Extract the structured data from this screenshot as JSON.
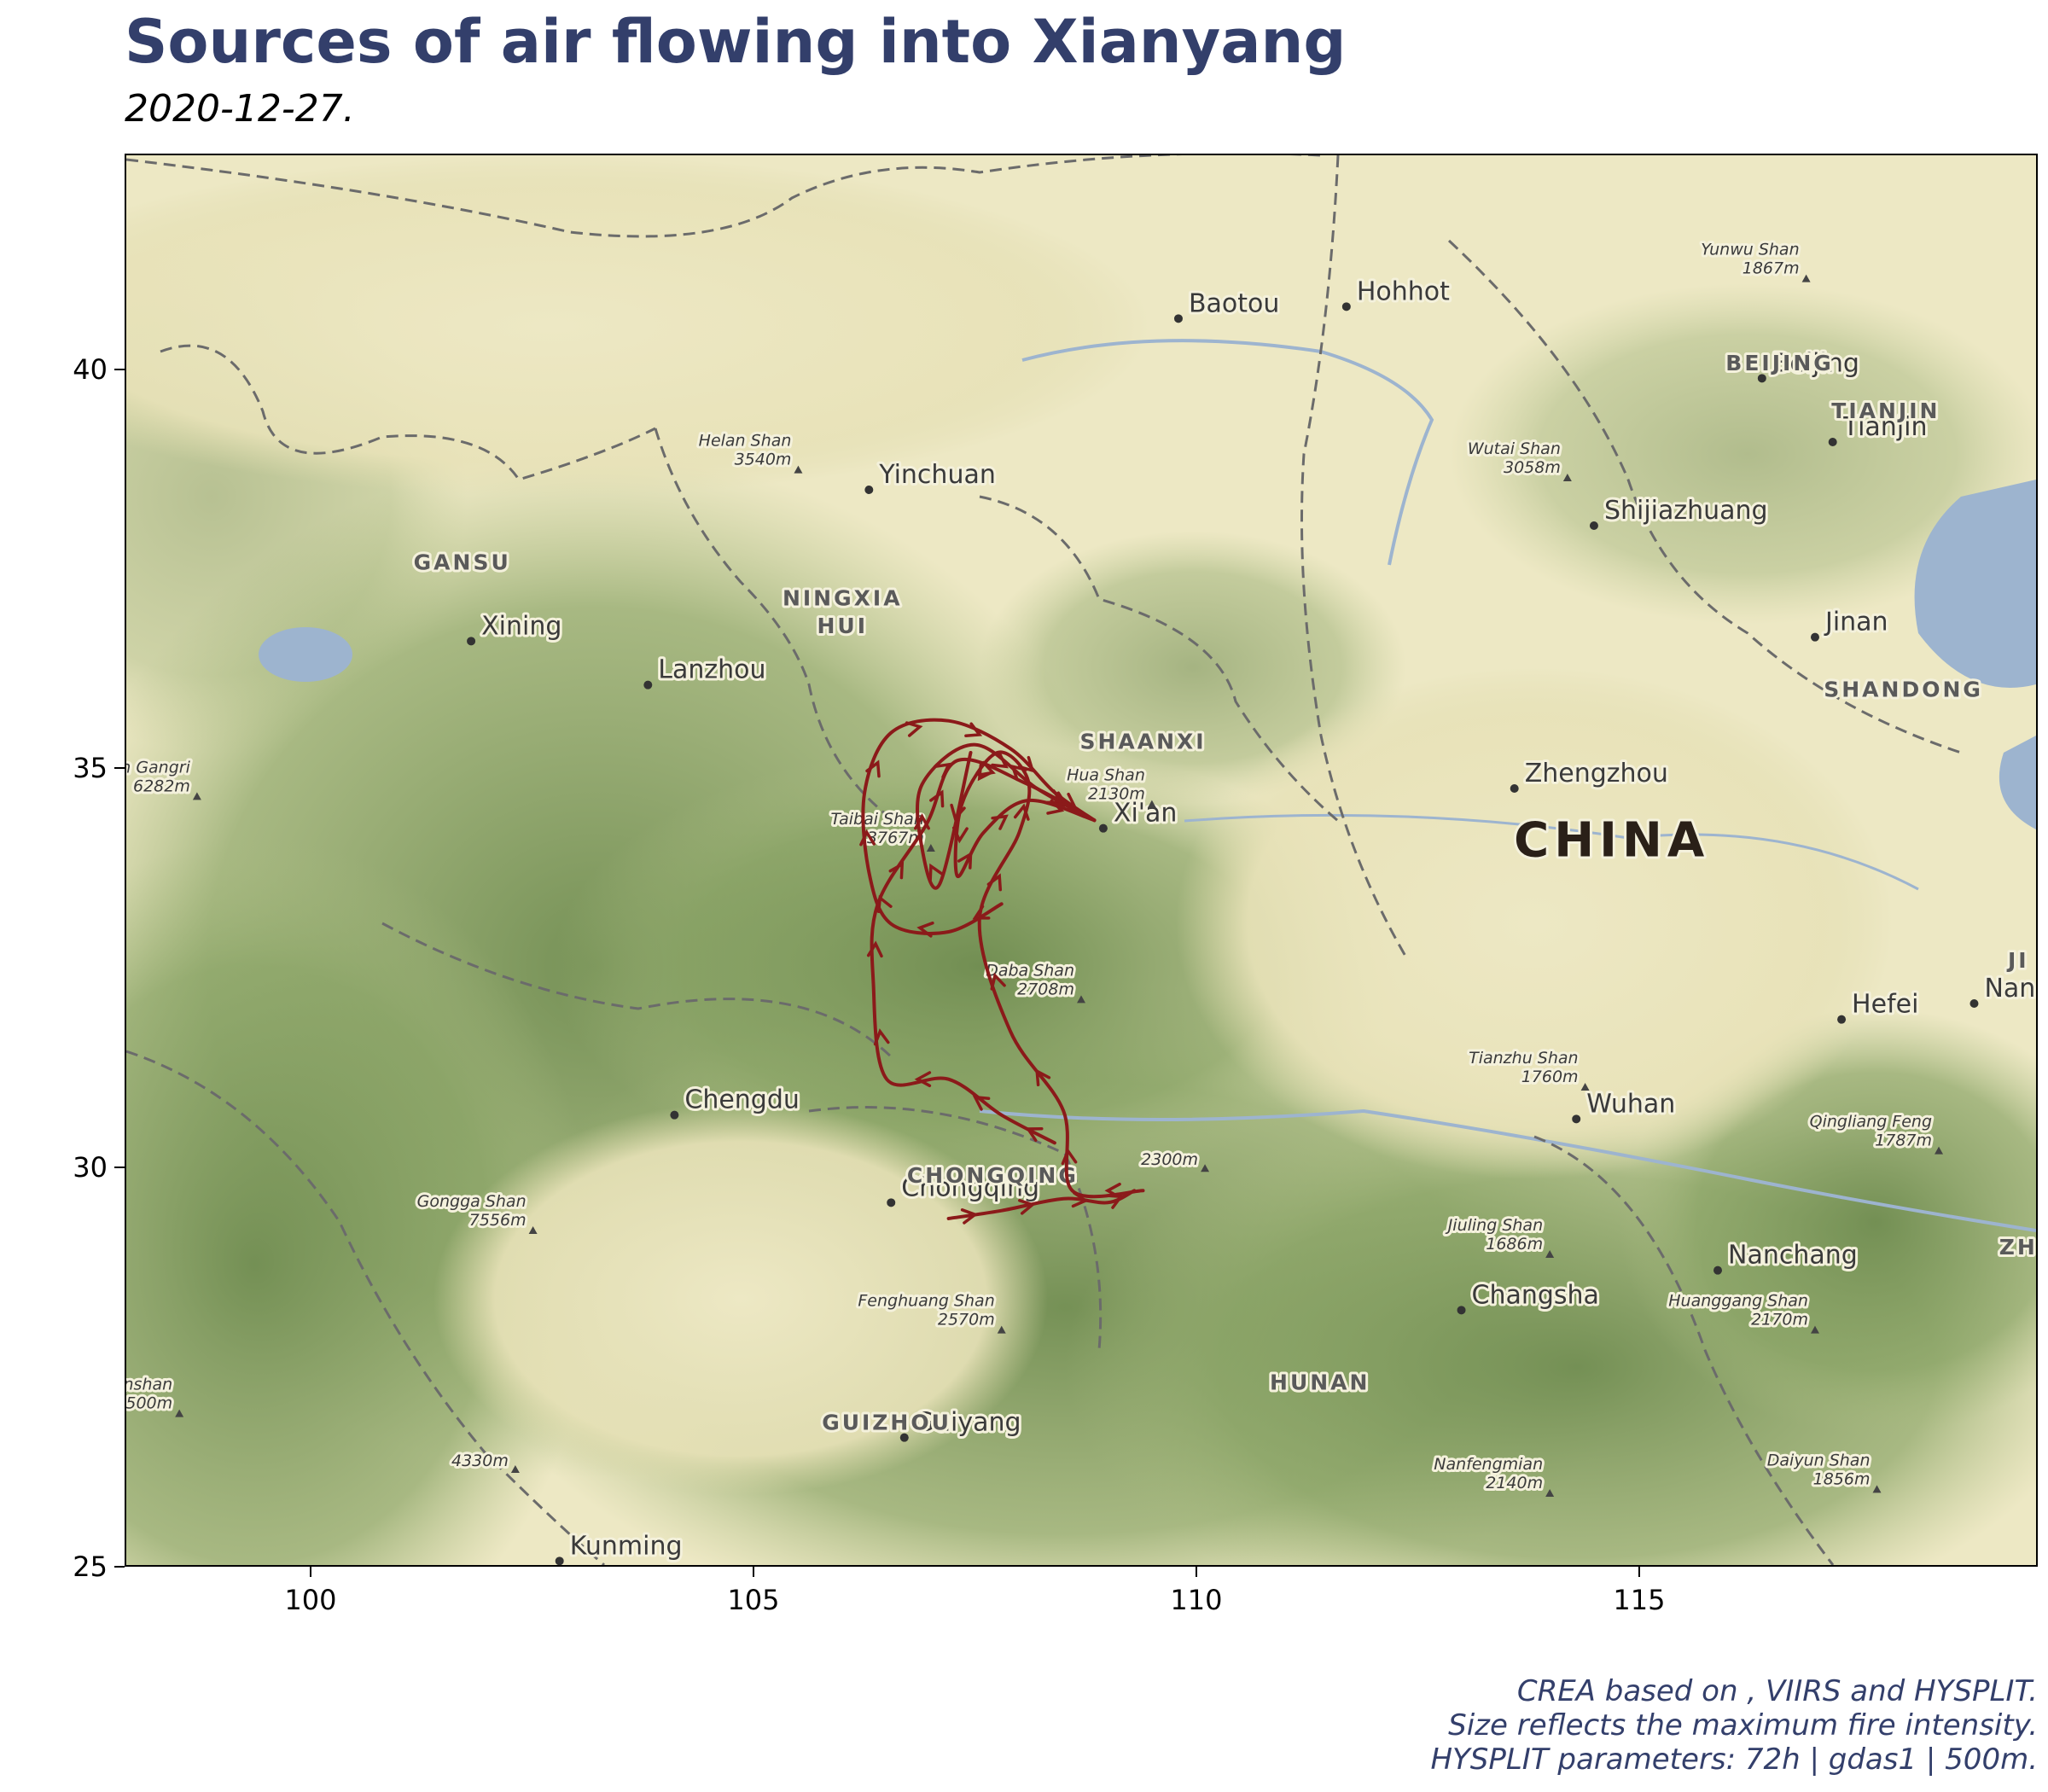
{
  "title": "Sources of air flowing into Xianyang",
  "subtitle": "2020-12-27.",
  "caption": [
    "CREA based on , VIIRS and HYSPLIT.",
    "Size reflects the maximum fire intensity.",
    "HYSPLIT parameters: 72h | gdas1 | 500m."
  ],
  "map": {
    "xlim": [
      97.9,
      119.5
    ],
    "ylim": [
      25.0,
      42.7
    ],
    "x_ticks": [
      100,
      105,
      110,
      115
    ],
    "y_ticks": [
      25,
      30,
      35,
      40
    ],
    "trajectory_color": "#8b1a1a",
    "water_color": "#9db4cf",
    "plain_color": "#ede8c4",
    "forest_color": "#7e9a5c",
    "cities": [
      {
        "name": "Baotou",
        "lon": 109.8,
        "lat": 40.65
      },
      {
        "name": "Hohhot",
        "lon": 111.7,
        "lat": 40.8
      },
      {
        "name": "Beijing",
        "lon": 116.4,
        "lat": 39.9
      },
      {
        "name": "Tianjin",
        "lon": 117.2,
        "lat": 39.1
      },
      {
        "name": "Yinchuan",
        "lon": 106.3,
        "lat": 38.5
      },
      {
        "name": "Shijiazhuang",
        "lon": 114.5,
        "lat": 38.05
      },
      {
        "name": "Xining",
        "lon": 101.8,
        "lat": 36.6
      },
      {
        "name": "Lanzhou",
        "lon": 103.8,
        "lat": 36.05
      },
      {
        "name": "Jinan",
        "lon": 117.0,
        "lat": 36.65
      },
      {
        "name": "Zhengzhou",
        "lon": 113.6,
        "lat": 34.75
      },
      {
        "name": "Xi'an",
        "lon": 108.95,
        "lat": 34.25
      },
      {
        "name": "Hefei",
        "lon": 117.3,
        "lat": 31.85
      },
      {
        "name": "Chengdu",
        "lon": 104.1,
        "lat": 30.65
      },
      {
        "name": "Wuhan",
        "lon": 114.3,
        "lat": 30.6
      },
      {
        "name": "Chongqing",
        "lon": 106.55,
        "lat": 29.55
      },
      {
        "name": "Nanchang",
        "lon": 115.9,
        "lat": 28.7
      },
      {
        "name": "Changsha",
        "lon": 113.0,
        "lat": 28.2
      },
      {
        "name": "Guiyang",
        "lon": 106.7,
        "lat": 26.6
      },
      {
        "name": "Kunming",
        "lon": 102.8,
        "lat": 25.05
      },
      {
        "name": "Nan",
        "lon": 118.8,
        "lat": 32.05
      }
    ],
    "provinces": [
      {
        "name": "BEIJING",
        "lon": 116.6,
        "lat": 40.0
      },
      {
        "name": "TIANJIN",
        "lon": 117.8,
        "lat": 39.4
      },
      {
        "name": "GANSU",
        "lon": 101.7,
        "lat": 37.5
      },
      {
        "name": "NINGXIA",
        "lon": 106.0,
        "lat": 37.05
      },
      {
        "name": "HUI",
        "lon": 106.0,
        "lat": 36.7
      },
      {
        "name": "SHAANXI",
        "lon": 109.4,
        "lat": 35.25
      },
      {
        "name": "SHANDONG",
        "lon": 118.0,
        "lat": 35.9
      },
      {
        "name": "CHONGQING",
        "lon": 107.7,
        "lat": 29.8
      },
      {
        "name": "HUNAN",
        "lon": 111.4,
        "lat": 27.2
      },
      {
        "name": "GUIZHOU",
        "lon": 106.5,
        "lat": 26.7
      },
      {
        "name": "ZH",
        "lon": 119.3,
        "lat": 28.9
      },
      {
        "name": "JI",
        "lon": 119.3,
        "lat": 32.5
      }
    ],
    "country": {
      "name": "CHINA",
      "lon": 114.7,
      "lat": 33.9
    },
    "peaks": [
      {
        "name": "Yunwu Shan",
        "elev": "1867m",
        "lon": 116.9,
        "lat": 41.15
      },
      {
        "name": "Helan Shan",
        "elev": "3540m",
        "lon": 105.5,
        "lat": 38.75
      },
      {
        "name": "Wutai Shan",
        "elev": "3058m",
        "lon": 114.2,
        "lat": 38.65
      },
      {
        "name": "Magen Gangri",
        "elev": "6282m",
        "lon": 98.7,
        "lat": 34.65
      },
      {
        "name": "Hua Shan",
        "elev": "2130m",
        "lon": 109.5,
        "lat": 34.55
      },
      {
        "name": "Taibai Shan",
        "elev": "3767m",
        "lon": 107.0,
        "lat": 34.0
      },
      {
        "name": "Daba Shan",
        "elev": "2708m",
        "lon": 108.7,
        "lat": 32.1
      },
      {
        "name": "Tianzhu Shan",
        "elev": "1760m",
        "lon": 114.4,
        "lat": 31.0
      },
      {
        "name": "Qingliang Feng",
        "elev": "1787m",
        "lon": 118.4,
        "lat": 30.2
      },
      {
        "name": "Gongga Shan",
        "elev": "7556m",
        "lon": 102.5,
        "lat": 29.2
      },
      {
        "name": "",
        "elev": "2300m",
        "lon": 110.1,
        "lat": 29.98
      },
      {
        "name": "Jiuling Shan",
        "elev": "1686m",
        "lon": 114.0,
        "lat": 28.9
      },
      {
        "name": "Huanggang Shan",
        "elev": "2170m",
        "lon": 117.0,
        "lat": 27.95
      },
      {
        "name": "Fenghuang Shan",
        "elev": "2570m",
        "lon": 107.8,
        "lat": 27.95
      },
      {
        "name": "Laotzyunshan",
        "elev": "4500m",
        "lon": 98.5,
        "lat": 26.9
      },
      {
        "name": "",
        "elev": "4330m",
        "lon": 102.3,
        "lat": 26.2
      },
      {
        "name": "Nanfengmian",
        "elev": "2140m",
        "lon": 114.0,
        "lat": 25.9
      },
      {
        "name": "Daiyun Shan",
        "elev": "1856m",
        "lon": 117.7,
        "lat": 25.95
      }
    ],
    "trajectories": [
      [
        [
          109.3,
          29.7
        ],
        [
          109.0,
          29.55
        ],
        [
          108.5,
          29.6
        ],
        [
          107.8,
          29.45
        ],
        [
          107.2,
          29.35
        ]
      ],
      [
        [
          108.85,
          34.35
        ],
        [
          108.4,
          34.7
        ],
        [
          107.9,
          35.25
        ],
        [
          107.2,
          35.6
        ],
        [
          106.55,
          35.45
        ],
        [
          106.25,
          34.7
        ],
        [
          106.3,
          33.7
        ],
        [
          106.55,
          33.05
        ],
        [
          107.2,
          32.95
        ],
        [
          107.8,
          33.3
        ]
      ],
      [
        [
          108.85,
          34.35
        ],
        [
          108.1,
          34.8
        ],
        [
          107.3,
          35.1
        ],
        [
          106.95,
          34.3
        ],
        [
          106.4,
          33.3
        ],
        [
          106.35,
          32.3
        ],
        [
          106.5,
          31.1
        ],
        [
          107.2,
          31.1
        ],
        [
          107.8,
          30.65
        ],
        [
          108.4,
          30.3
        ]
      ],
      [
        [
          108.85,
          34.35
        ],
        [
          108.1,
          34.6
        ],
        [
          107.6,
          34.2
        ],
        [
          107.3,
          33.65
        ],
        [
          107.35,
          34.55
        ],
        [
          107.75,
          35.2
        ],
        [
          108.1,
          34.85
        ],
        [
          108.0,
          34.2
        ],
        [
          107.55,
          33.1
        ],
        [
          107.9,
          31.7
        ],
        [
          108.5,
          30.7
        ],
        [
          108.6,
          29.7
        ],
        [
          109.4,
          29.7
        ]
      ],
      [
        [
          108.85,
          34.35
        ],
        [
          108.2,
          34.75
        ],
        [
          107.5,
          35.3
        ],
        [
          106.9,
          34.8
        ],
        [
          106.9,
          34.0
        ],
        [
          107.1,
          33.55
        ],
        [
          107.45,
          35.2
        ]
      ]
    ]
  }
}
